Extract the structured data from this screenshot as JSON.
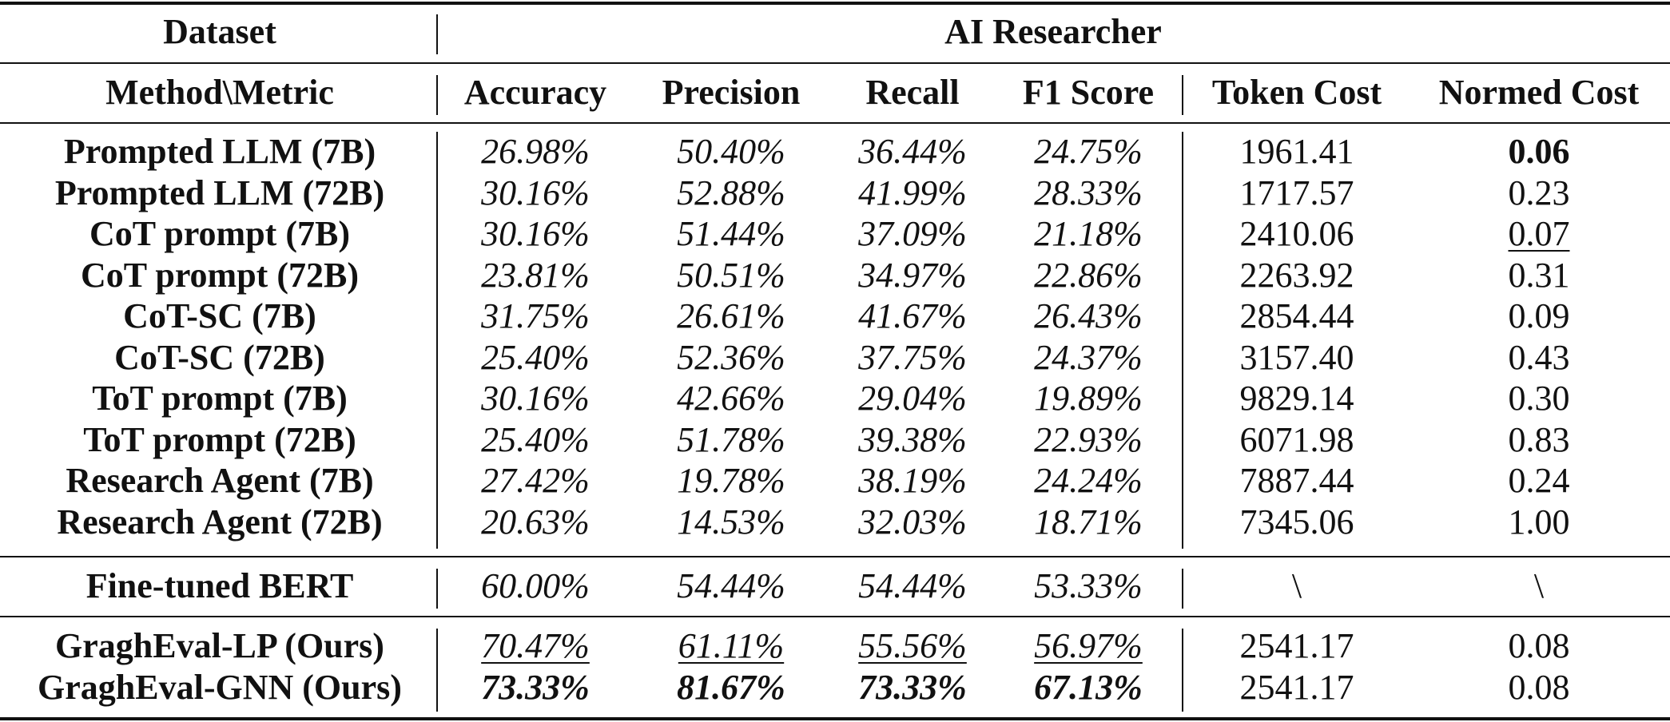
{
  "header": {
    "dataset_label": "Dataset",
    "dataset_name": "AI Researcher",
    "method_metric_label": "Method\\Metric",
    "columns": [
      "Accuracy",
      "Precision",
      "Recall",
      "F1 Score",
      "Token Cost",
      "Normed Cost"
    ]
  },
  "groups": [
    {
      "rows": [
        {
          "method": "Prompted LLM (7B)",
          "values": [
            "26.98%",
            "50.40%",
            "36.44%",
            "24.75%",
            "1961.41",
            "0.06"
          ],
          "bold": [
            false,
            false,
            false,
            false,
            false,
            true
          ],
          "underline": [
            false,
            false,
            false,
            false,
            false,
            false
          ]
        },
        {
          "method": "Prompted LLM (72B)",
          "values": [
            "30.16%",
            "52.88%",
            "41.99%",
            "28.33%",
            "1717.57",
            "0.23"
          ],
          "bold": [
            false,
            false,
            false,
            false,
            false,
            false
          ],
          "underline": [
            false,
            false,
            false,
            false,
            false,
            false
          ]
        },
        {
          "method": "CoT prompt (7B)",
          "values": [
            "30.16%",
            "51.44%",
            "37.09%",
            "21.18%",
            "2410.06",
            "0.07"
          ],
          "bold": [
            false,
            false,
            false,
            false,
            false,
            false
          ],
          "underline": [
            false,
            false,
            false,
            false,
            false,
            true
          ]
        },
        {
          "method": "CoT prompt (72B)",
          "values": [
            "23.81%",
            "50.51%",
            "34.97%",
            "22.86%",
            "2263.92",
            "0.31"
          ],
          "bold": [
            false,
            false,
            false,
            false,
            false,
            false
          ],
          "underline": [
            false,
            false,
            false,
            false,
            false,
            false
          ]
        },
        {
          "method": "CoT-SC (7B)",
          "values": [
            "31.75%",
            "26.61%",
            "41.67%",
            "26.43%",
            "2854.44",
            "0.09"
          ],
          "bold": [
            false,
            false,
            false,
            false,
            false,
            false
          ],
          "underline": [
            false,
            false,
            false,
            false,
            false,
            false
          ]
        },
        {
          "method": "CoT-SC (72B)",
          "values": [
            "25.40%",
            "52.36%",
            "37.75%",
            "24.37%",
            "3157.40",
            "0.43"
          ],
          "bold": [
            false,
            false,
            false,
            false,
            false,
            false
          ],
          "underline": [
            false,
            false,
            false,
            false,
            false,
            false
          ]
        },
        {
          "method": "ToT prompt (7B)",
          "values": [
            "30.16%",
            "42.66%",
            "29.04%",
            "19.89%",
            "9829.14",
            "0.30"
          ],
          "bold": [
            false,
            false,
            false,
            false,
            false,
            false
          ],
          "underline": [
            false,
            false,
            false,
            false,
            false,
            false
          ]
        },
        {
          "method": "ToT prompt (72B)",
          "values": [
            "25.40%",
            "51.78%",
            "39.38%",
            "22.93%",
            "6071.98",
            "0.83"
          ],
          "bold": [
            false,
            false,
            false,
            false,
            false,
            false
          ],
          "underline": [
            false,
            false,
            false,
            false,
            false,
            false
          ]
        },
        {
          "method": "Research Agent (7B)",
          "values": [
            "27.42%",
            "19.78%",
            "38.19%",
            "24.24%",
            "7887.44",
            "0.24"
          ],
          "bold": [
            false,
            false,
            false,
            false,
            false,
            false
          ],
          "underline": [
            false,
            false,
            false,
            false,
            false,
            false
          ]
        },
        {
          "method": "Research Agent (72B)",
          "values": [
            "20.63%",
            "14.53%",
            "32.03%",
            "18.71%",
            "7345.06",
            "1.00"
          ],
          "bold": [
            false,
            false,
            false,
            false,
            false,
            false
          ],
          "underline": [
            false,
            false,
            false,
            false,
            false,
            false
          ]
        }
      ]
    },
    {
      "rows": [
        {
          "method": "Fine-tuned BERT",
          "values": [
            "60.00%",
            "54.44%",
            "54.44%",
            "53.33%",
            "\\",
            "\\"
          ],
          "bold": [
            false,
            false,
            false,
            false,
            false,
            false
          ],
          "underline": [
            false,
            false,
            false,
            false,
            false,
            false
          ]
        }
      ]
    },
    {
      "rows": [
        {
          "method": "GraghEval-LP (Ours)",
          "values": [
            "70.47%",
            "61.11%",
            "55.56%",
            "56.97%",
            "2541.17",
            "0.08"
          ],
          "bold": [
            false,
            false,
            false,
            false,
            false,
            false
          ],
          "underline": [
            true,
            true,
            true,
            true,
            false,
            false
          ]
        },
        {
          "method": "GraghEval-GNN (Ours)",
          "values": [
            "73.33%",
            "81.67%",
            "73.33%",
            "67.13%",
            "2541.17",
            "0.08"
          ],
          "bold": [
            true,
            true,
            true,
            true,
            false,
            false
          ],
          "underline": [
            false,
            false,
            false,
            false,
            false,
            false
          ]
        }
      ]
    }
  ]
}
